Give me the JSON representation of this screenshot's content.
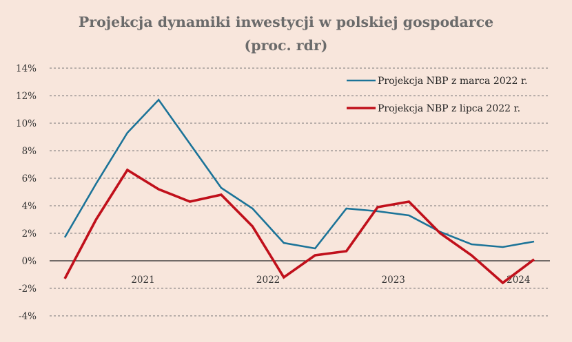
{
  "chart_data": {
    "type": "line",
    "title_lines": [
      "Projekcja dynamiki inwestycji w polskiej gospodarce",
      "(proc. rdr)"
    ],
    "y_tick_labels": [
      "14%",
      "12%",
      "10%",
      "8%",
      "6%",
      "4%",
      "2%",
      "0%",
      "-2%",
      "-4%"
    ],
    "y_ticks": [
      14,
      12,
      10,
      8,
      6,
      4,
      2,
      0,
      -2,
      -4
    ],
    "ylim": [
      -4,
      14
    ],
    "year_labels": [
      "2021",
      "2022",
      "2023",
      "2024"
    ],
    "x_quarters": [
      "2020 Q4",
      "2021 Q1",
      "2021 Q2",
      "2021 Q3",
      "2021 Q4",
      "2022 Q1",
      "2022 Q2",
      "2022 Q3",
      "2022 Q4",
      "2023 Q1",
      "2023 Q2",
      "2023 Q3",
      "2023 Q4",
      "2024 Q1",
      "2024 Q2",
      "2024 Q3"
    ],
    "grid": true,
    "legend_position": "top-right",
    "series": [
      {
        "name": "Projekcja NBP z marca 2022 r.",
        "color": "#1b7398",
        "values": [
          1.7,
          5.6,
          9.3,
          11.7,
          8.5,
          5.3,
          3.8,
          1.3,
          0.9,
          3.8,
          3.6,
          3.3,
          2.1,
          1.2,
          1.0,
          1.4
        ]
      },
      {
        "name": "Projekcja NBP z lipca 2022 r.",
        "color": "#c0101b",
        "values": [
          -1.3,
          3.0,
          6.6,
          5.2,
          4.3,
          4.8,
          2.5,
          -1.2,
          0.4,
          0.7,
          3.9,
          4.3,
          2.0,
          0.4,
          -1.6,
          0.1
        ]
      }
    ]
  }
}
